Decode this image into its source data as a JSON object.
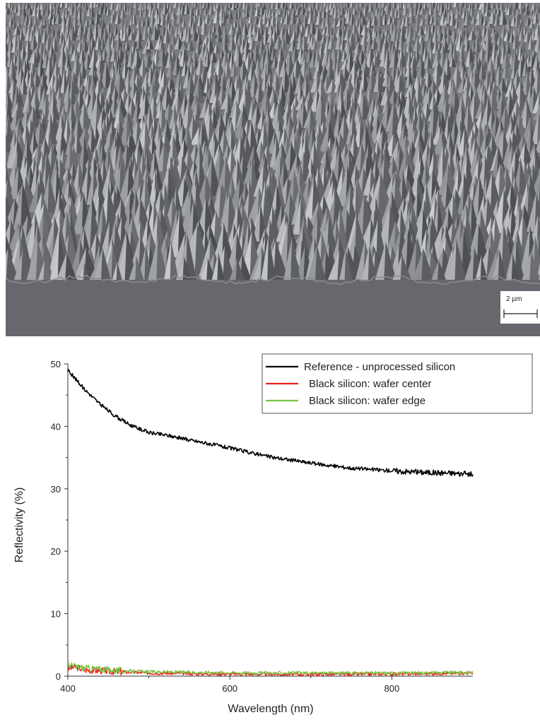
{
  "scale_bar": {
    "label": "2 µm"
  },
  "chart_data": {
    "type": "line",
    "title": "",
    "xlabel": "Wavelength  (nm)",
    "ylabel": "Reflectivity  (%)",
    "xlim": [
      400,
      900
    ],
    "ylim": [
      0,
      50
    ],
    "xticks": [
      400,
      600,
      800
    ],
    "yticks": [
      0,
      10,
      20,
      30,
      40,
      50
    ],
    "grid": false,
    "legend_position": "top-right",
    "series": [
      {
        "name": "Reference - unprocessed silicon",
        "color": "#000000",
        "x": [
          400,
          410,
          420,
          440,
          460,
          480,
          500,
          525,
          550,
          575,
          600,
          625,
          650,
          675,
          700,
          725,
          750,
          775,
          800,
          825,
          850,
          875,
          900
        ],
        "values": [
          49,
          47.5,
          46,
          43.5,
          41.5,
          40,
          39,
          38.5,
          37.8,
          37.2,
          36.5,
          35.8,
          35.1,
          34.6,
          34.1,
          33.7,
          33.3,
          33.1,
          32.9,
          32.7,
          32.6,
          32.5,
          32.3
        ]
      },
      {
        "name": "Black silicon: wafer center",
        "color": "#e8231b",
        "x": [
          400,
          410,
          420,
          440,
          460,
          480,
          500,
          550,
          600,
          650,
          700,
          750,
          800,
          850,
          900
        ],
        "values": [
          1.2,
          1.5,
          1.0,
          0.9,
          0.7,
          0.6,
          0.5,
          0.4,
          0.35,
          0.3,
          0.3,
          0.3,
          0.35,
          0.4,
          0.5
        ]
      },
      {
        "name": "Black silicon: wafer edge",
        "color": "#7ac142",
        "x": [
          400,
          410,
          420,
          440,
          460,
          480,
          500,
          550,
          600,
          650,
          700,
          750,
          800,
          850,
          900
        ],
        "values": [
          1.8,
          1.5,
          1.3,
          1.1,
          0.9,
          0.8,
          0.7,
          0.6,
          0.55,
          0.5,
          0.5,
          0.5,
          0.5,
          0.55,
          0.6
        ]
      }
    ]
  }
}
